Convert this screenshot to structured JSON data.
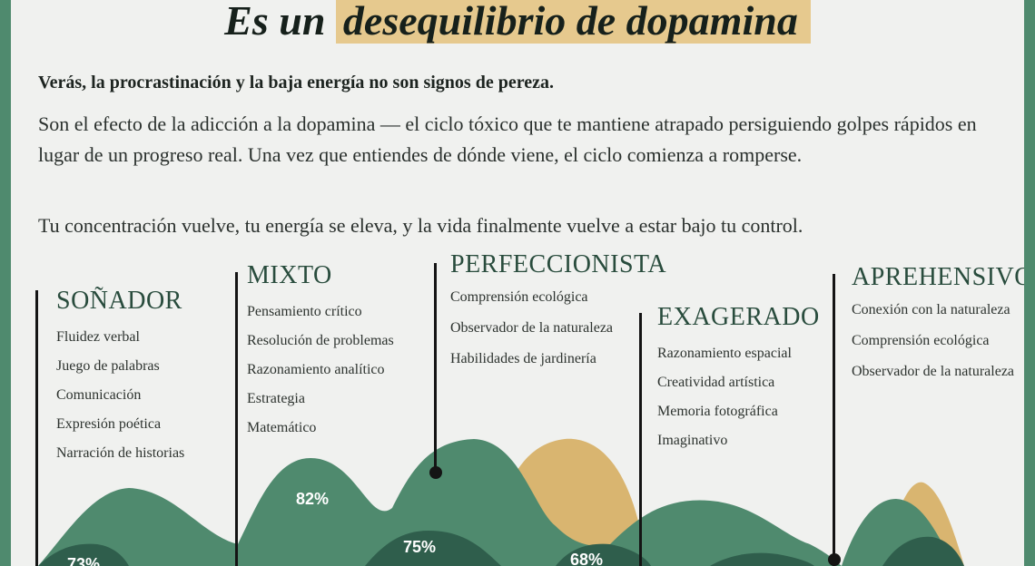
{
  "headline": {
    "prefix": "Es un",
    "highlight": "desequilibrio de dopamina"
  },
  "lead": "Verás, la procrastinación y la baja energía no son signos de pereza.",
  "paragraphs": [
    "Son el efecto de la adicción a la dopamina — el ciclo tóxico que te mantiene atrapado persiguiendo golpes rápidos en lugar de un progreso real. Una vez que entiendes de dónde viene, el ciclo comienza a romperse.",
    "Tu concentración vuelve, tu energía se eleva, y la vida finalmente vuelve a estar bajo tu control."
  ],
  "colors": {
    "green": "#4f8a6e",
    "dark_green": "#2f5e4c",
    "gold": "#d9b570",
    "highlight": "#e6c98e"
  },
  "types": [
    {
      "title": "SOÑADOR",
      "items": [
        "Fluidez verbal",
        "Juego de palabras",
        "Comunicación",
        "Expresión poética",
        "Narración de historias"
      ]
    },
    {
      "title": "MIXTO",
      "items": [
        "Pensamiento crítico",
        "Resolución de problemas",
        "Razonamiento analítico",
        "Estrategia",
        "Matemático"
      ]
    },
    {
      "title": "PERFECCIONISTA",
      "items": [
        "Comprensión ecológica",
        "Observador de la naturaleza",
        "Habilidades de jardinería"
      ]
    },
    {
      "title": "EXAGERADO",
      "items": [
        "Razonamiento espacial",
        "Creatividad artística",
        "Memoria fotográfica",
        "Imaginativo"
      ]
    },
    {
      "title": "APREHENSIVO",
      "items": [
        "Conexión con la naturaleza",
        "Comprensión ecológica",
        "Observador de la naturaleza"
      ]
    }
  ],
  "percents": [
    "73%",
    "82%",
    "75%",
    "68%"
  ]
}
